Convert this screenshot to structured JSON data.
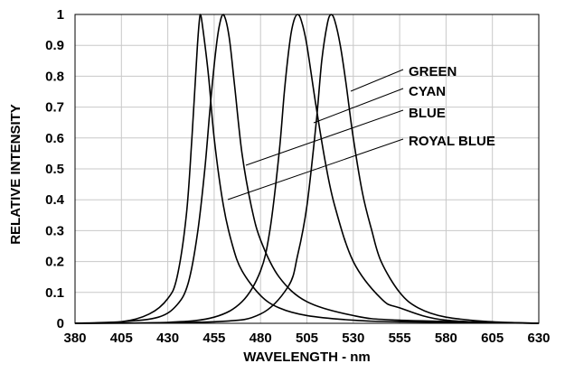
{
  "chart_data": {
    "type": "line",
    "title": "",
    "xlabel": "WAVELENGTH - nm",
    "ylabel": "RELATIVE INTENSITY",
    "xlim": [
      380,
      630
    ],
    "ylim": [
      0,
      1
    ],
    "grid": true,
    "x_ticks": [
      "380",
      "405",
      "430",
      "455",
      "480",
      "505",
      "530",
      "555",
      "580",
      "605",
      "630"
    ],
    "y_ticks": [
      "0",
      "0.1",
      "0.2",
      "0.3",
      "0.4",
      "0.5",
      "0.6",
      "0.7",
      "0.8",
      "0.9",
      "1"
    ],
    "series": [
      {
        "name": "ROYAL BLUE",
        "x": [
          380,
          405,
          420,
          430,
          435,
          440,
          443,
          446,
          447.5,
          449,
          452,
          455,
          460,
          465,
          470,
          480,
          490,
          505,
          530,
          555,
          630
        ],
        "y": [
          0.0,
          0.005,
          0.03,
          0.08,
          0.15,
          0.35,
          0.6,
          0.9,
          1.0,
          0.95,
          0.8,
          0.6,
          0.38,
          0.25,
          0.17,
          0.09,
          0.05,
          0.025,
          0.01,
          0.005,
          0.0
        ]
      },
      {
        "name": "BLUE",
        "x": [
          380,
          405,
          425,
          435,
          441,
          446,
          450,
          453,
          456,
          458,
          460,
          463,
          466,
          470,
          475,
          480,
          490,
          505,
          530,
          555,
          630
        ],
        "y": [
          0.0,
          0.005,
          0.02,
          0.06,
          0.13,
          0.29,
          0.5,
          0.71,
          0.89,
          0.97,
          1.0,
          0.93,
          0.77,
          0.55,
          0.38,
          0.27,
          0.15,
          0.07,
          0.025,
          0.01,
          0.0
        ]
      },
      {
        "name": "CYAN",
        "x": [
          380,
          430,
          455,
          470,
          480,
          485,
          490,
          493,
          496,
          498,
          500,
          502,
          505,
          510,
          515,
          520,
          530,
          545,
          555,
          580,
          630
        ],
        "y": [
          0.0,
          0.003,
          0.02,
          0.07,
          0.17,
          0.3,
          0.55,
          0.76,
          0.92,
          0.98,
          1.0,
          0.98,
          0.9,
          0.7,
          0.52,
          0.38,
          0.2,
          0.08,
          0.05,
          0.01,
          0.0
        ]
      },
      {
        "name": "GREEN",
        "x": [
          380,
          455,
          480,
          495,
          500,
          505,
          510,
          513,
          516,
          518,
          520,
          523,
          526,
          530,
          535,
          540,
          545,
          555,
          565,
          580,
          605,
          630
        ],
        "y": [
          0.0,
          0.005,
          0.03,
          0.12,
          0.22,
          0.38,
          0.65,
          0.85,
          0.97,
          1.0,
          0.98,
          0.9,
          0.78,
          0.6,
          0.42,
          0.3,
          0.2,
          0.1,
          0.05,
          0.02,
          0.005,
          0.0
        ]
      }
    ]
  }
}
